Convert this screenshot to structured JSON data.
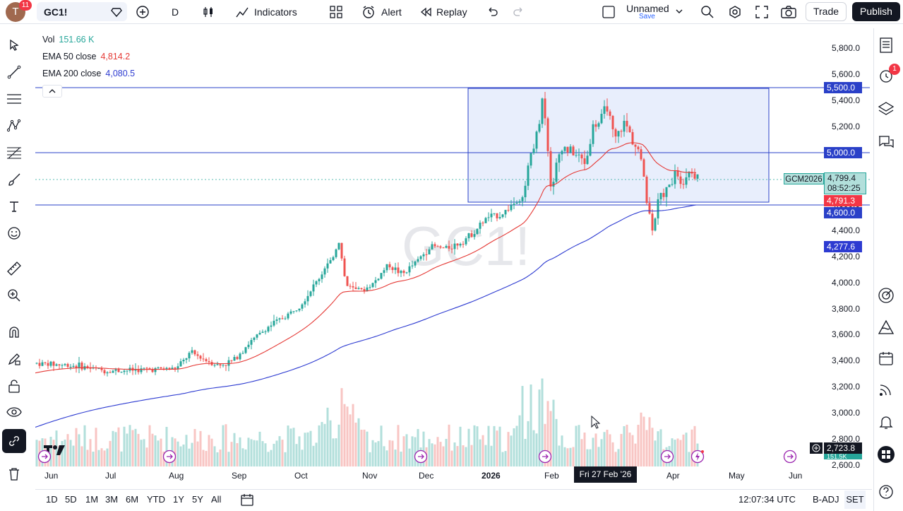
{
  "topbar": {
    "avatar_letter": "T",
    "notif_count": "11",
    "symbol": "GC1!",
    "interval": "D",
    "indicators_label": "Indicators",
    "alert_label": "Alert",
    "replay_label": "Replay",
    "layout_name": "Unnamed",
    "layout_save": "Save",
    "trade_label": "Trade",
    "publish_label": "Publish"
  },
  "legend": {
    "vol_label": "Vol",
    "vol_value": "151.66 K",
    "ema50_label": "EMA 50 close",
    "ema50_value": "4,814.2",
    "ema200_label": "EMA 200 close",
    "ema200_value": "4,080.5"
  },
  "watermark": "GC1!",
  "price_axis": [
    "5,800.0",
    "5,600.0",
    "5,400.0",
    "5,200.0",
    "5,000.0",
    "4,800.0",
    "4,600.0",
    "4,400.0",
    "4,200.0",
    "4,000.0",
    "3,800.0",
    "3,600.0",
    "3,400.0",
    "3,200.0",
    "3,000.0",
    "2,800.0",
    "2,600.0"
  ],
  "price_boxes": {
    "p5500": "5,500.0",
    "p5000": "5,000.0",
    "symbol_tag": "GCM2026",
    "last": "4,799.4",
    "countdown": "08:52:25",
    "ema50": "4,791.3",
    "p4600": "4,600.0",
    "ema200": "4,277.6",
    "cursor": "2,723.8",
    "vol_tag": "151.5K"
  },
  "time_axis": {
    "labels": [
      "Jun",
      "Jul",
      "Aug",
      "Sep",
      "Oct",
      "Nov",
      "Dec",
      "2026",
      "Feb",
      "Apr",
      "May",
      "Jun"
    ],
    "crosshair": "Fri 27 Feb '26"
  },
  "bottombar": {
    "ranges": [
      "1D",
      "5D",
      "1M",
      "3M",
      "6M",
      "YTD",
      "1Y",
      "5Y",
      "All"
    ],
    "clock": "12:07:34 UTC",
    "badj": "B-ADJ",
    "set": "SET"
  },
  "right_alert_count": "1",
  "colors": {
    "up": "#26a69a",
    "down": "#ef5350",
    "ema50": "#e53935",
    "ema200": "#2d3bd1",
    "line_blue": "#2a40c8",
    "rect_fill": "#e8eefc",
    "accent": "#2962ff"
  }
}
